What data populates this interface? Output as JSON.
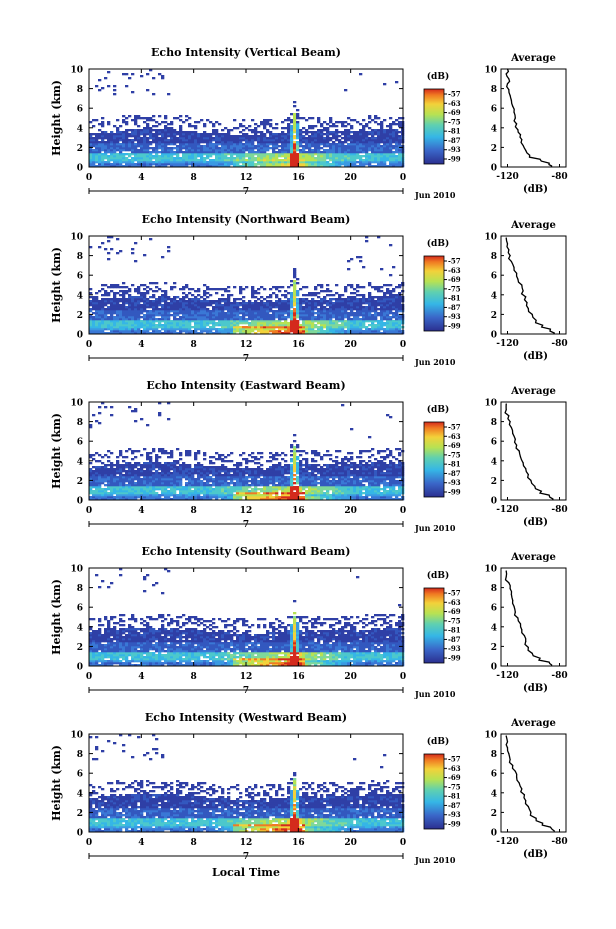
{
  "chart_data": [
    {
      "type": "heatmap",
      "title": "Echo Intensity (Vertical Beam)",
      "ylabel": "Height (km)",
      "x_ticks": [
        "0",
        "4",
        "8",
        "12",
        "16",
        "20",
        "0"
      ],
      "x_range": [
        0,
        24
      ],
      "y_ticks": [
        "0",
        "2",
        "4",
        "6",
        "8",
        "10"
      ],
      "y_range": [
        0,
        10
      ],
      "date_label": "7",
      "month_label": "Jun 2010",
      "colorbar": {
        "title": "(dB)",
        "ticks": [
          "-57",
          "-63",
          "-69",
          "-75",
          "-81",
          "-87",
          "-93",
          "-99"
        ]
      },
      "profile": {
        "title": "Average",
        "xlabel": "(dB)",
        "x_ticks": [
          "-120",
          "-80"
        ],
        "y_ticks": [
          "0",
          "2",
          "4",
          "6",
          "8",
          "10"
        ],
        "points": [
          [
            -86,
            0.1
          ],
          [
            -88,
            0.4
          ],
          [
            -95,
            0.8
          ],
          [
            -103,
            1.2
          ],
          [
            -106,
            1.7
          ],
          [
            -108,
            2.2
          ],
          [
            -109,
            2.8
          ],
          [
            -110,
            3.3
          ],
          [
            -112,
            3.8
          ],
          [
            -113,
            4.4
          ],
          [
            -114,
            5.0
          ],
          [
            -115,
            5.6
          ],
          [
            -116,
            6.2
          ],
          [
            -117,
            6.8
          ],
          [
            -118,
            7.3
          ],
          [
            -119,
            7.9
          ],
          [
            -120,
            8.5
          ],
          [
            -119,
            9.0
          ],
          [
            -121,
            9.5
          ],
          [
            -120,
            10.0
          ]
        ]
      }
    },
    {
      "type": "heatmap",
      "title": "Echo Intensity (Northward Beam)",
      "ylabel": "Height (km)",
      "x_ticks": [
        "0",
        "4",
        "8",
        "12",
        "16",
        "20",
        "0"
      ],
      "x_range": [
        0,
        24
      ],
      "y_ticks": [
        "0",
        "2",
        "4",
        "6",
        "8",
        "10"
      ],
      "y_range": [
        0,
        10
      ],
      "date_label": "7",
      "month_label": "Jun 2010",
      "colorbar": {
        "title": "(dB)",
        "ticks": [
          "-57",
          "-63",
          "-69",
          "-75",
          "-81",
          "-87",
          "-93",
          "-99"
        ]
      },
      "profile": {
        "title": "Average",
        "xlabel": "(dB)",
        "x_ticks": [
          "-120",
          "-80"
        ],
        "y_ticks": [
          "0",
          "2",
          "4",
          "6",
          "8",
          "10"
        ],
        "points": [
          [
            -84,
            0.1
          ],
          [
            -87,
            0.5
          ],
          [
            -93,
            0.9
          ],
          [
            -98,
            1.4
          ],
          [
            -101,
            2.0
          ],
          [
            -104,
            2.6
          ],
          [
            -105,
            3.2
          ],
          [
            -106,
            3.8
          ],
          [
            -108,
            4.4
          ],
          [
            -109,
            5.0
          ],
          [
            -112,
            5.6
          ],
          [
            -113,
            6.2
          ],
          [
            -115,
            6.8
          ],
          [
            -117,
            7.4
          ],
          [
            -118,
            8.0
          ],
          [
            -119,
            8.6
          ],
          [
            -120,
            9.2
          ],
          [
            -121,
            9.8
          ]
        ]
      }
    },
    {
      "type": "heatmap",
      "title": "Echo Intensity (Eastward Beam)",
      "ylabel": "Height (km)",
      "x_ticks": [
        "0",
        "4",
        "8",
        "12",
        "16",
        "20",
        "0"
      ],
      "x_range": [
        0,
        24
      ],
      "y_ticks": [
        "0",
        "2",
        "4",
        "6",
        "8",
        "10"
      ],
      "y_range": [
        0,
        10
      ],
      "date_label": "7",
      "month_label": "Jun 2010",
      "colorbar": {
        "title": "(dB)",
        "ticks": [
          "-57",
          "-63",
          "-69",
          "-75",
          "-81",
          "-87",
          "-93",
          "-99"
        ]
      },
      "profile": {
        "title": "Average",
        "xlabel": "(dB)",
        "x_ticks": [
          "-120",
          "-80"
        ],
        "y_ticks": [
          "0",
          "2",
          "4",
          "6",
          "8",
          "10"
        ],
        "points": [
          [
            -85,
            0.1
          ],
          [
            -88,
            0.5
          ],
          [
            -94,
            0.9
          ],
          [
            -99,
            1.4
          ],
          [
            -102,
            2.0
          ],
          [
            -104,
            2.6
          ],
          [
            -106,
            3.2
          ],
          [
            -108,
            3.8
          ],
          [
            -110,
            4.4
          ],
          [
            -111,
            5.0
          ],
          [
            -113,
            5.6
          ],
          [
            -114,
            6.2
          ],
          [
            -116,
            6.8
          ],
          [
            -117,
            7.4
          ],
          [
            -118,
            8.0
          ],
          [
            -119,
            8.6
          ],
          [
            -121,
            9.2
          ],
          [
            -121,
            9.8
          ]
        ]
      }
    },
    {
      "type": "heatmap",
      "title": "Echo Intensity (Southward Beam)",
      "ylabel": "Height (km)",
      "x_ticks": [
        "0",
        "4",
        "8",
        "12",
        "16",
        "20",
        "0"
      ],
      "x_range": [
        0,
        24
      ],
      "y_ticks": [
        "0",
        "2",
        "4",
        "6",
        "8",
        "10"
      ],
      "y_range": [
        0,
        10
      ],
      "date_label": "7",
      "month_label": "Jun 2010",
      "colorbar": {
        "title": "(dB)",
        "ticks": [
          "-57",
          "-63",
          "-69",
          "-75",
          "-81",
          "-87",
          "-93",
          "-99"
        ]
      },
      "profile": {
        "title": "Average",
        "xlabel": "(dB)",
        "x_ticks": [
          "-120",
          "-80"
        ],
        "y_ticks": [
          "0",
          "2",
          "4",
          "6",
          "8",
          "10"
        ],
        "points": [
          [
            -86,
            0.1
          ],
          [
            -88,
            0.4
          ],
          [
            -95,
            0.8
          ],
          [
            -101,
            1.3
          ],
          [
            -104,
            1.9
          ],
          [
            -106,
            2.5
          ],
          [
            -107,
            3.1
          ],
          [
            -109,
            3.7
          ],
          [
            -110,
            4.3
          ],
          [
            -112,
            4.9
          ],
          [
            -114,
            5.5
          ],
          [
            -115,
            6.1
          ],
          [
            -116,
            6.7
          ],
          [
            -117,
            7.3
          ],
          [
            -118,
            7.9
          ],
          [
            -119,
            8.5
          ],
          [
            -121,
            9.1
          ],
          [
            -121,
            9.7
          ]
        ]
      }
    },
    {
      "type": "heatmap",
      "title": "Echo Intensity (Westward Beam)",
      "ylabel": "Height (km)",
      "xlabel": "Local Time",
      "x_ticks": [
        "0",
        "4",
        "8",
        "12",
        "16",
        "20",
        "0"
      ],
      "x_range": [
        0,
        24
      ],
      "y_ticks": [
        "0",
        "2",
        "4",
        "6",
        "8",
        "10"
      ],
      "y_range": [
        0,
        10
      ],
      "date_label": "7",
      "month_label": "Jun 2010",
      "colorbar": {
        "title": "(dB)",
        "ticks": [
          "-57",
          "-63",
          "-69",
          "-75",
          "-81",
          "-87",
          "-93",
          "-99"
        ]
      },
      "profile": {
        "title": "Average",
        "xlabel": "(dB)",
        "x_ticks": [
          "-120",
          "-80"
        ],
        "y_ticks": [
          "0",
          "2",
          "4",
          "6",
          "8",
          "10"
        ],
        "points": [
          [
            -84,
            0.1
          ],
          [
            -87,
            0.5
          ],
          [
            -93,
            0.9
          ],
          [
            -98,
            1.4
          ],
          [
            -102,
            2.0
          ],
          [
            -104,
            2.6
          ],
          [
            -106,
            3.2
          ],
          [
            -107,
            3.8
          ],
          [
            -109,
            4.4
          ],
          [
            -111,
            5.0
          ],
          [
            -113,
            5.6
          ],
          [
            -114,
            6.2
          ],
          [
            -116,
            6.8
          ],
          [
            -118,
            7.4
          ],
          [
            -119,
            8.0
          ],
          [
            -120,
            8.6
          ],
          [
            -120,
            9.2
          ],
          [
            -121,
            9.8
          ]
        ]
      }
    }
  ]
}
